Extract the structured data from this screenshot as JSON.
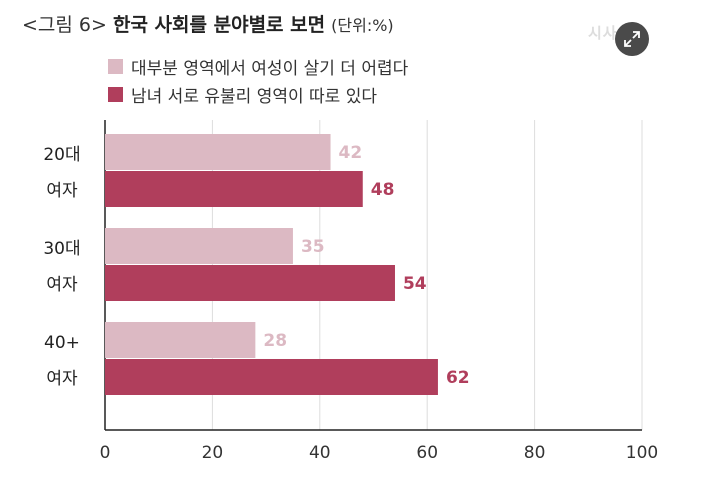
{
  "header": {
    "prefix": "<그림 6>",
    "title": "한국 사회를 분야별로 보면",
    "unit": "(단위:%)",
    "watermark": "시사"
  },
  "icons": {
    "expand": "expand-arrows-icon"
  },
  "colors": {
    "series1": "#dcb9c3",
    "series2": "#b03e5c",
    "grid": "#dddddd",
    "axis": "#222222"
  },
  "chart_data": {
    "type": "bar",
    "orientation": "horizontal",
    "categories": [
      "20대 여자",
      "30대 여자",
      "40+ 여자"
    ],
    "category_lines": [
      [
        "20대",
        "여자"
      ],
      [
        "30대",
        "여자"
      ],
      [
        "40+",
        "여자"
      ]
    ],
    "series": [
      {
        "name": "대부분 영역에서 여성이 살기 더 어렵다",
        "values": [
          42,
          35,
          28
        ],
        "color": "#dcb9c3"
      },
      {
        "name": "남녀 서로 유불리 영역이 따로 있다",
        "values": [
          48,
          54,
          62
        ],
        "color": "#b03e5c"
      }
    ],
    "xlim": [
      0,
      100
    ],
    "xticks": [
      0,
      20,
      40,
      60,
      80,
      100
    ],
    "grid": true,
    "legend": "top-left"
  }
}
